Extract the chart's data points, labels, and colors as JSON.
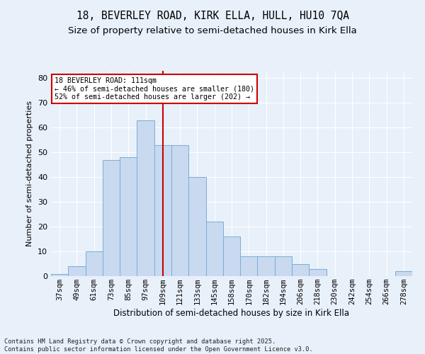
{
  "title1": "18, BEVERLEY ROAD, KIRK ELLA, HULL, HU10 7QA",
  "title2": "Size of property relative to semi-detached houses in Kirk Ella",
  "xlabel": "Distribution of semi-detached houses by size in Kirk Ella",
  "ylabel": "Number of semi-detached properties",
  "bins": [
    "37sqm",
    "49sqm",
    "61sqm",
    "73sqm",
    "85sqm",
    "97sqm",
    "109sqm",
    "121sqm",
    "133sqm",
    "145sqm",
    "158sqm",
    "170sqm",
    "182sqm",
    "194sqm",
    "206sqm",
    "218sqm",
    "230sqm",
    "242sqm",
    "254sqm",
    "266sqm",
    "278sqm"
  ],
  "values": [
    1,
    4,
    10,
    47,
    48,
    63,
    53,
    53,
    40,
    22,
    16,
    8,
    8,
    8,
    5,
    3,
    0,
    0,
    0,
    0,
    2
  ],
  "bar_color": "#c8d9f0",
  "bar_edge_color": "#7aafd4",
  "vline_x_index": 6,
  "vline_color": "#cc0000",
  "annotation_title": "18 BEVERLEY ROAD: 111sqm",
  "annotation_line1": "← 46% of semi-detached houses are smaller (180)",
  "annotation_line2": "52% of semi-detached houses are larger (202) →",
  "annotation_box_color": "#ffffff",
  "annotation_box_edge": "#cc0000",
  "ylim": [
    0,
    83
  ],
  "yticks": [
    0,
    10,
    20,
    30,
    40,
    50,
    60,
    70,
    80
  ],
  "footer": "Contains HM Land Registry data © Crown copyright and database right 2025.\nContains public sector information licensed under the Open Government Licence v3.0.",
  "bg_color": "#e8f0fa",
  "grid_color": "#ffffff",
  "title1_fontsize": 10.5,
  "title2_fontsize": 9.5
}
